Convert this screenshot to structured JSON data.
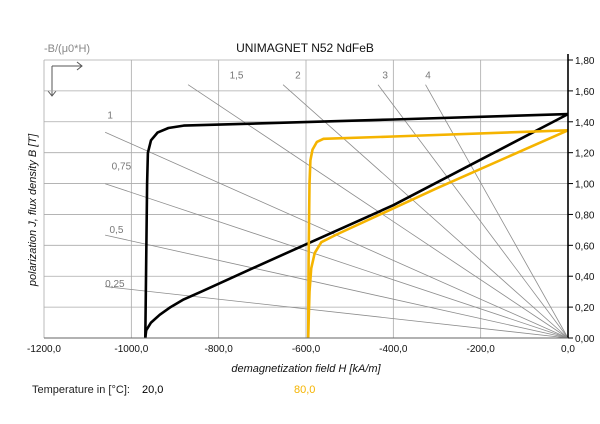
{
  "chart_data": {
    "type": "line",
    "title": "UNIMAGNET N52 NdFeB",
    "corner_label": "-B/(μ0*H)",
    "xlabel": "demagnetization field H [kA/m]",
    "ylabel": "polarization J, flux density B [T]",
    "xlim": [
      -1200,
      0
    ],
    "ylim": [
      0,
      1.8
    ],
    "x_ticks": [
      "-1200,0",
      "-1000,0",
      "-800,0",
      "-600,0",
      "-400,0",
      "-200,0",
      "0,0"
    ],
    "x_tick_values": [
      -1200,
      -1000,
      -800,
      -600,
      -400,
      -200,
      0
    ],
    "y_ticks": [
      "0,00",
      "0,20",
      "0,40",
      "0,60",
      "0,80",
      "1,00",
      "1,20",
      "1,40",
      "1,60",
      "1,80"
    ],
    "y_tick_values": [
      0,
      0.2,
      0.4,
      0.6,
      0.8,
      1.0,
      1.2,
      1.4,
      1.6,
      1.8
    ],
    "grid": true,
    "load_lines": [
      {
        "label": "0,25",
        "slope": 0.25
      },
      {
        "label": "0,5",
        "slope": 0.5
      },
      {
        "label": "0,75",
        "slope": 0.75
      },
      {
        "label": "1",
        "slope": 1
      },
      {
        "label": "1,5",
        "slope": 1.5
      },
      {
        "label": "2",
        "slope": 2
      },
      {
        "label": "3",
        "slope": 3
      },
      {
        "label": "4",
        "slope": 4
      }
    ],
    "series": [
      {
        "name": "20,0",
        "color": "#000000",
        "J": [
          [
            -968,
            0
          ],
          [
            -966,
            0.5
          ],
          [
            -964,
            1.0
          ],
          [
            -962,
            1.2
          ],
          [
            -955,
            1.28
          ],
          [
            -940,
            1.33
          ],
          [
            -915,
            1.36
          ],
          [
            -880,
            1.375
          ],
          [
            -700,
            1.39
          ],
          [
            -400,
            1.415
          ],
          [
            0,
            1.45
          ]
        ],
        "B": [
          [
            -968,
            0
          ],
          [
            -966,
            0.05
          ],
          [
            -955,
            0.1
          ],
          [
            -935,
            0.15
          ],
          [
            -910,
            0.2
          ],
          [
            -880,
            0.25
          ],
          [
            -840,
            0.3
          ],
          [
            -700,
            0.48
          ],
          [
            -400,
            0.86
          ],
          [
            0,
            1.45
          ]
        ]
      },
      {
        "name": "80,0",
        "color": "#f5b400",
        "J": [
          [
            -595,
            0
          ],
          [
            -594,
            0.5
          ],
          [
            -592,
            1.0
          ],
          [
            -590,
            1.15
          ],
          [
            -585,
            1.22
          ],
          [
            -575,
            1.27
          ],
          [
            -560,
            1.29
          ],
          [
            -400,
            1.305
          ],
          [
            0,
            1.345
          ]
        ],
        "B": [
          [
            -595,
            0
          ],
          [
            -594,
            0.1
          ],
          [
            -592,
            0.3
          ],
          [
            -588,
            0.45
          ],
          [
            -580,
            0.55
          ],
          [
            -565,
            0.62
          ],
          [
            -530,
            0.67
          ],
          [
            -300,
            0.97
          ],
          [
            0,
            1.345
          ]
        ]
      }
    ]
  },
  "legend": {
    "label": "Temperature in [°C]:",
    "entries": [
      {
        "text": "20,0",
        "color": "#000000"
      },
      {
        "text": "80,0",
        "color": "#f5b400"
      }
    ]
  }
}
